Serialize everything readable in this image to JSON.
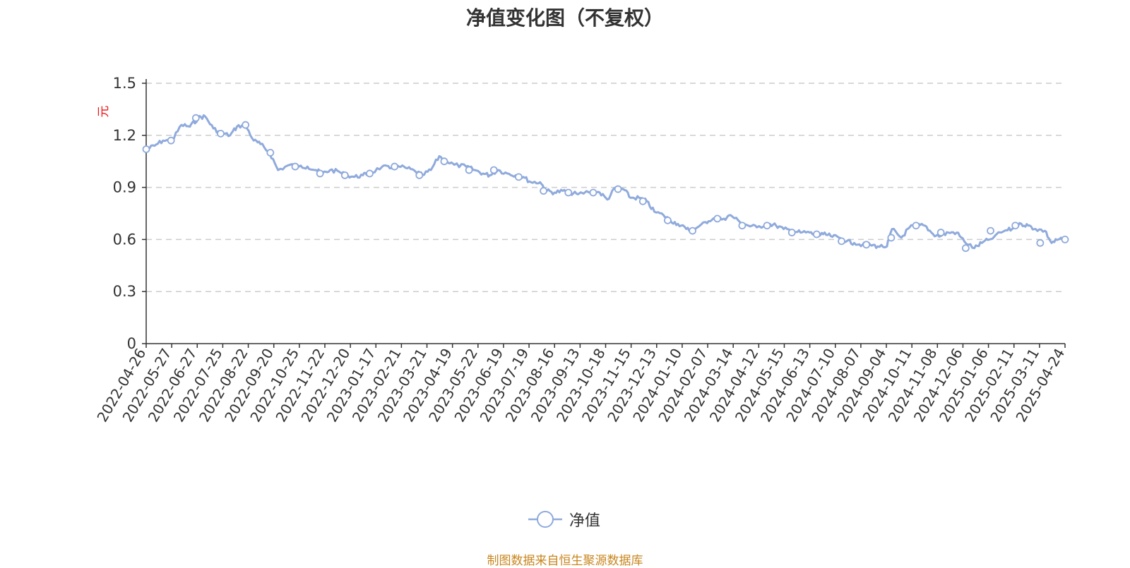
{
  "source": "制图数据来自恒生聚源数据库",
  "chart_data": {
    "type": "line",
    "title": "净值变化图（不复权）",
    "ylabel": "元",
    "ylim": [
      0,
      1.5
    ],
    "y_ticks": [
      "0",
      "0.3",
      "0.6",
      "0.9",
      "1.2",
      "1.5"
    ],
    "grid": true,
    "legend_position": "bottom-center",
    "x_ticks": [
      "2022-04-26",
      "2022-05-27",
      "2022-06-27",
      "2022-07-25",
      "2022-08-22",
      "2022-09-20",
      "2022-10-25",
      "2022-11-22",
      "2022-12-20",
      "2023-01-17",
      "2023-02-21",
      "2023-03-21",
      "2023-04-19",
      "2023-05-22",
      "2023-06-19",
      "2023-07-19",
      "2023-08-16",
      "2023-09-13",
      "2023-10-18",
      "2023-11-15",
      "2023-12-13",
      "2024-01-10",
      "2024-02-07",
      "2024-03-14",
      "2024-04-12",
      "2024-05-15",
      "2024-06-13",
      "2024-07-10",
      "2024-08-07",
      "2024-09-04",
      "2024-10-11",
      "2024-11-08",
      "2024-12-06",
      "2025-01-06",
      "2025-02-11",
      "2025-03-11",
      "2025-04-24"
    ],
    "series": [
      {
        "name": "净值",
        "color": "#8faadc",
        "x": [
          "2022-04-26",
          "2022-05-06",
          "2022-05-16",
          "2022-05-27",
          "2022-06-07",
          "2022-06-17",
          "2022-06-27",
          "2022-07-05",
          "2022-07-15",
          "2022-07-25",
          "2022-08-04",
          "2022-08-12",
          "2022-08-22",
          "2022-09-01",
          "2022-09-09",
          "2022-09-20",
          "2022-09-30",
          "2022-10-14",
          "2022-10-25",
          "2022-11-04",
          "2022-11-14",
          "2022-11-22",
          "2022-12-01",
          "2022-12-12",
          "2022-12-20",
          "2022-12-30",
          "2023-01-09",
          "2023-01-17",
          "2023-02-01",
          "2023-02-10",
          "2023-02-21",
          "2023-03-03",
          "2023-03-13",
          "2023-03-21",
          "2023-03-31",
          "2023-04-10",
          "2023-04-19",
          "2023-04-28",
          "2023-05-12",
          "2023-05-22",
          "2023-06-01",
          "2023-06-09",
          "2023-06-19",
          "2023-06-30",
          "2023-07-10",
          "2023-07-19",
          "2023-07-28",
          "2023-08-08",
          "2023-08-16",
          "2023-08-25",
          "2023-09-04",
          "2023-09-13",
          "2023-09-22",
          "2023-10-09",
          "2023-10-18",
          "2023-10-27",
          "2023-11-06",
          "2023-11-15",
          "2023-11-24",
          "2023-12-04",
          "2023-12-13",
          "2023-12-22",
          "2024-01-02",
          "2024-01-10",
          "2024-01-19",
          "2024-01-29",
          "2024-02-07",
          "2024-02-21",
          "2024-03-01",
          "2024-03-14",
          "2024-03-22",
          "2024-04-02",
          "2024-04-12",
          "2024-04-22",
          "2024-05-06",
          "2024-05-15",
          "2024-05-24",
          "2024-06-04",
          "2024-06-13",
          "2024-06-24",
          "2024-07-02",
          "2024-07-10",
          "2024-07-19",
          "2024-07-29",
          "2024-08-07",
          "2024-08-16",
          "2024-08-26",
          "2024-09-04",
          "2024-09-13",
          "2024-09-24",
          "2024-09-30",
          "2024-10-11",
          "2024-10-21",
          "2024-10-30",
          "2024-11-08",
          "2024-11-18",
          "2024-11-27",
          "2024-12-06",
          "2024-12-16",
          "2024-12-25",
          "2025-01-06",
          "2025-01-15",
          "2025-01-24",
          "2025-02-11",
          "2025-02-20",
          "2025-03-03",
          "2025-03-11",
          "2025-03-20",
          "2025-03-31",
          "2025-04-08",
          "2025-04-16",
          "2025-04-24"
        ],
        "values": [
          1.12,
          1.14,
          1.17,
          1.17,
          1.26,
          1.25,
          1.3,
          1.31,
          1.24,
          1.21,
          1.2,
          1.25,
          1.26,
          1.17,
          1.15,
          1.1,
          1.0,
          1.03,
          1.02,
          1.02,
          1.0,
          0.98,
          1.0,
          0.99,
          0.97,
          0.96,
          0.97,
          0.98,
          1.02,
          1.01,
          1.02,
          1.01,
          0.99,
          0.97,
          1.0,
          1.08,
          1.05,
          1.03,
          1.02,
          1.0,
          0.98,
          0.97,
          1.0,
          0.98,
          0.97,
          0.96,
          0.93,
          0.93,
          0.88,
          0.87,
          0.88,
          0.87,
          0.86,
          0.88,
          0.87,
          0.83,
          0.9,
          0.89,
          0.84,
          0.84,
          0.82,
          0.76,
          0.74,
          0.71,
          0.69,
          0.66,
          0.65,
          0.7,
          0.72,
          0.72,
          0.74,
          0.7,
          0.68,
          0.67,
          0.69,
          0.68,
          0.66,
          0.65,
          0.64,
          0.64,
          0.62,
          0.63,
          0.62,
          0.61,
          0.59,
          0.58,
          0.57,
          0.57,
          0.56,
          0.56,
          0.66,
          0.61,
          0.67,
          0.68,
          0.68,
          0.63,
          0.62,
          0.64,
          0.64,
          0.59,
          0.55,
          0.58,
          0.6,
          0.65,
          0.66,
          0.69,
          0.68,
          0.66,
          0.65,
          0.58,
          0.6,
          0.6
        ],
        "markers": [
          1.12,
          1.17,
          1.3,
          1.21,
          1.26,
          1.1,
          1.02,
          0.98,
          0.97,
          0.98,
          1.02,
          0.97,
          1.05,
          1.0,
          1.0,
          0.96,
          0.88,
          0.87,
          0.87,
          0.89,
          0.82,
          0.71,
          0.65,
          0.72,
          0.68,
          0.68,
          0.64,
          0.63,
          0.59,
          0.57,
          0.61,
          0.68,
          0.64,
          0.55,
          0.65,
          0.68,
          0.58,
          0.6
        ]
      }
    ]
  }
}
